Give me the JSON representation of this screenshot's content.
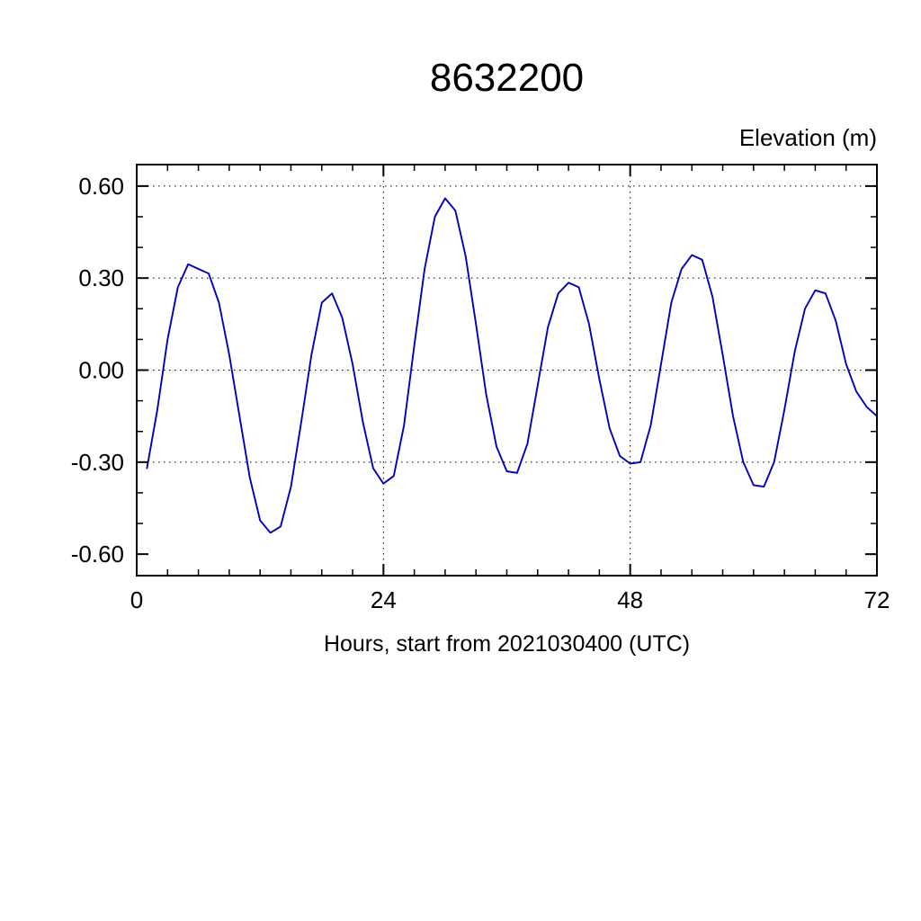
{
  "chart_data": {
    "type": "line",
    "title": "8632200",
    "ylabel": "Elevation (m)",
    "xlabel": "Hours, start from 2021030400 (UTC)",
    "xlim": [
      0,
      72
    ],
    "ylim": [
      -0.67,
      0.67
    ],
    "xtick_labels": [
      "0",
      "24",
      "48",
      "72"
    ],
    "ytick_labels": [
      "0.60",
      "0.30",
      "0.00",
      "-0.30",
      "-0.60"
    ],
    "x_minor_step": 3,
    "y_minor_step": 0.1,
    "grid_x": [
      24,
      48
    ],
    "grid_y": [
      0.6,
      0.3,
      0.0,
      -0.3
    ],
    "line_color": "#0000bf",
    "x": [
      1,
      2,
      3,
      4,
      5,
      6,
      7,
      8,
      9,
      10,
      11,
      12,
      13,
      14,
      15,
      16,
      17,
      18,
      19,
      20,
      21,
      22,
      23,
      24,
      25,
      26,
      27,
      28,
      29,
      30,
      31,
      32,
      33,
      34,
      35,
      36,
      37,
      38,
      39,
      40,
      41,
      42,
      43,
      44,
      45,
      46,
      47,
      48,
      49,
      50,
      51,
      52,
      53,
      54,
      55,
      56,
      57,
      58,
      59,
      60,
      61,
      62,
      63,
      64,
      65,
      66,
      67,
      68,
      69,
      70,
      71,
      72
    ],
    "values": [
      -0.32,
      -0.13,
      0.1,
      0.27,
      0.345,
      0.33,
      0.315,
      0.22,
      0.05,
      -0.15,
      -0.35,
      -0.49,
      -0.53,
      -0.51,
      -0.38,
      -0.17,
      0.05,
      0.22,
      0.25,
      0.17,
      0.02,
      -0.17,
      -0.32,
      -0.37,
      -0.345,
      -0.18,
      0.08,
      0.33,
      0.5,
      0.56,
      0.52,
      0.37,
      0.15,
      -0.08,
      -0.25,
      -0.33,
      -0.335,
      -0.24,
      -0.05,
      0.14,
      0.25,
      0.285,
      0.27,
      0.15,
      -0.03,
      -0.19,
      -0.28,
      -0.305,
      -0.3,
      -0.18,
      0.02,
      0.22,
      0.33,
      0.375,
      0.36,
      0.24,
      0.05,
      -0.15,
      -0.3,
      -0.375,
      -0.38,
      -0.3,
      -0.13,
      0.06,
      0.2,
      0.26,
      0.25,
      0.16,
      0.02,
      -0.07,
      -0.12,
      -0.15
    ]
  }
}
